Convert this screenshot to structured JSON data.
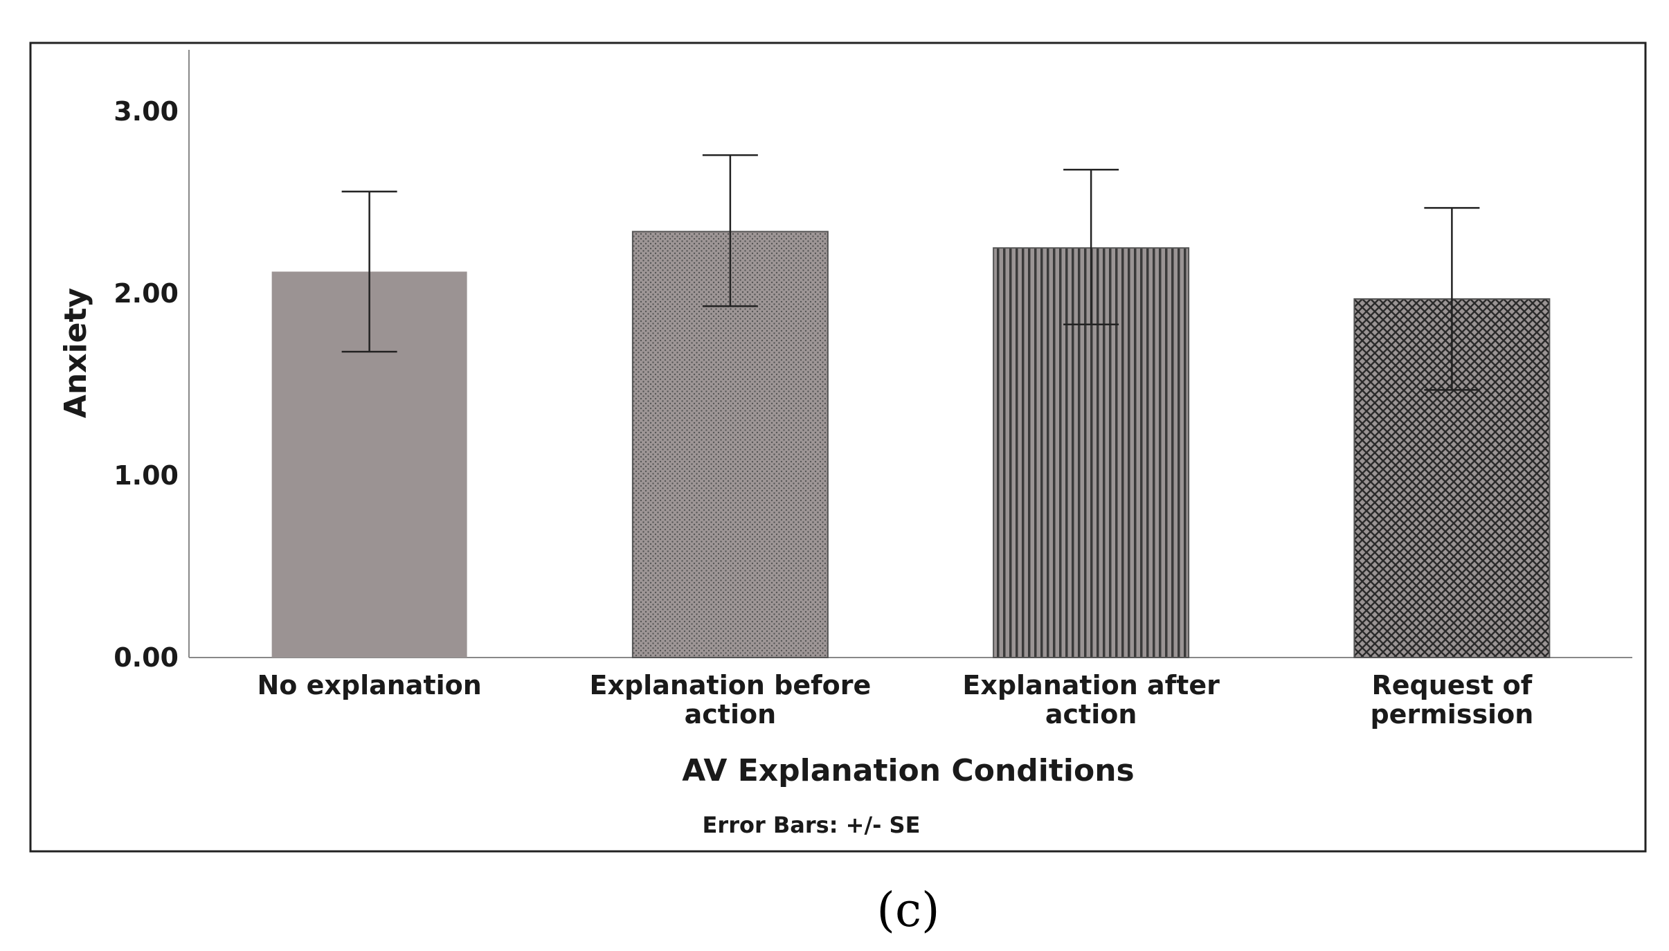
{
  "chart_data": {
    "type": "bar",
    "title": "",
    "xlabel": "AV Explanation Conditions",
    "ylabel": "Anxiety",
    "ylim": [
      0,
      3.3
    ],
    "yticks": [
      0,
      1,
      2,
      3
    ],
    "ytick_labels": [
      "0.00",
      "1.00",
      "2.00",
      "3.00"
    ],
    "categories": [
      [
        "No explanation"
      ],
      [
        "Explanation before",
        "action"
      ],
      [
        "Explanation after",
        "action"
      ],
      [
        "Request of",
        "permission"
      ]
    ],
    "values": [
      2.12,
      2.34,
      2.25,
      1.97
    ],
    "error_low": [
      1.68,
      1.93,
      1.83,
      1.47
    ],
    "error_high": [
      2.56,
      2.76,
      2.68,
      2.47
    ],
    "patterns": [
      "solid",
      "dots",
      "vertical-lines",
      "crosshatch"
    ],
    "note": "Error Bars: +/- SE",
    "colors": {
      "bar_fill": "#9b9393",
      "bar_stroke": "#555555",
      "axis": "#888888",
      "frame": "#222222",
      "pattern_ink": "#333333"
    }
  },
  "panel_label": "(c)"
}
